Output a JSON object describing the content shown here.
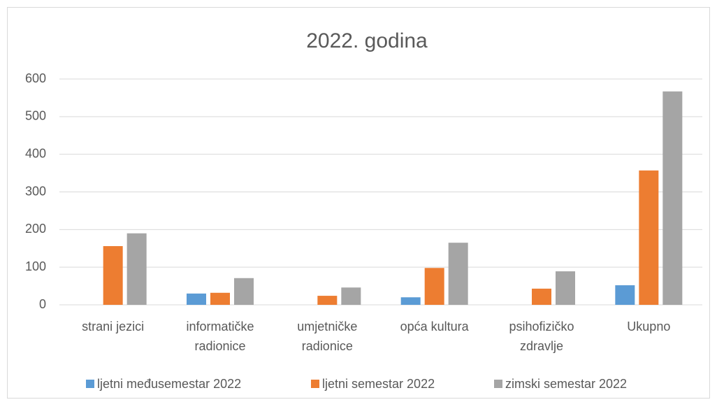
{
  "chart_data": {
    "type": "bar",
    "title": "2022. godina",
    "categories": [
      [
        "strani jezici"
      ],
      [
        "informatičke",
        "radionice"
      ],
      [
        "umjetničke",
        "radionice"
      ],
      [
        "opća kultura"
      ],
      [
        "psihofizičko",
        "zdravlje"
      ],
      [
        "Ukupno"
      ]
    ],
    "series": [
      {
        "name": "ljetni međusemestar 2022",
        "color": "#5b9bd5",
        "values": [
          0,
          30,
          0,
          20,
          0,
          52
        ]
      },
      {
        "name": "ljetni semestar 2022",
        "color": "#ed7d31",
        "values": [
          156,
          32,
          24,
          98,
          43,
          357
        ]
      },
      {
        "name": "zimski semestar 2022",
        "color": "#a5a5a5",
        "values": [
          190,
          71,
          46,
          165,
          89,
          567
        ]
      }
    ],
    "ylim": [
      0,
      600
    ],
    "yticks": [
      0,
      100,
      200,
      300,
      400,
      500,
      600
    ],
    "grid": true,
    "legend": "bottom"
  }
}
